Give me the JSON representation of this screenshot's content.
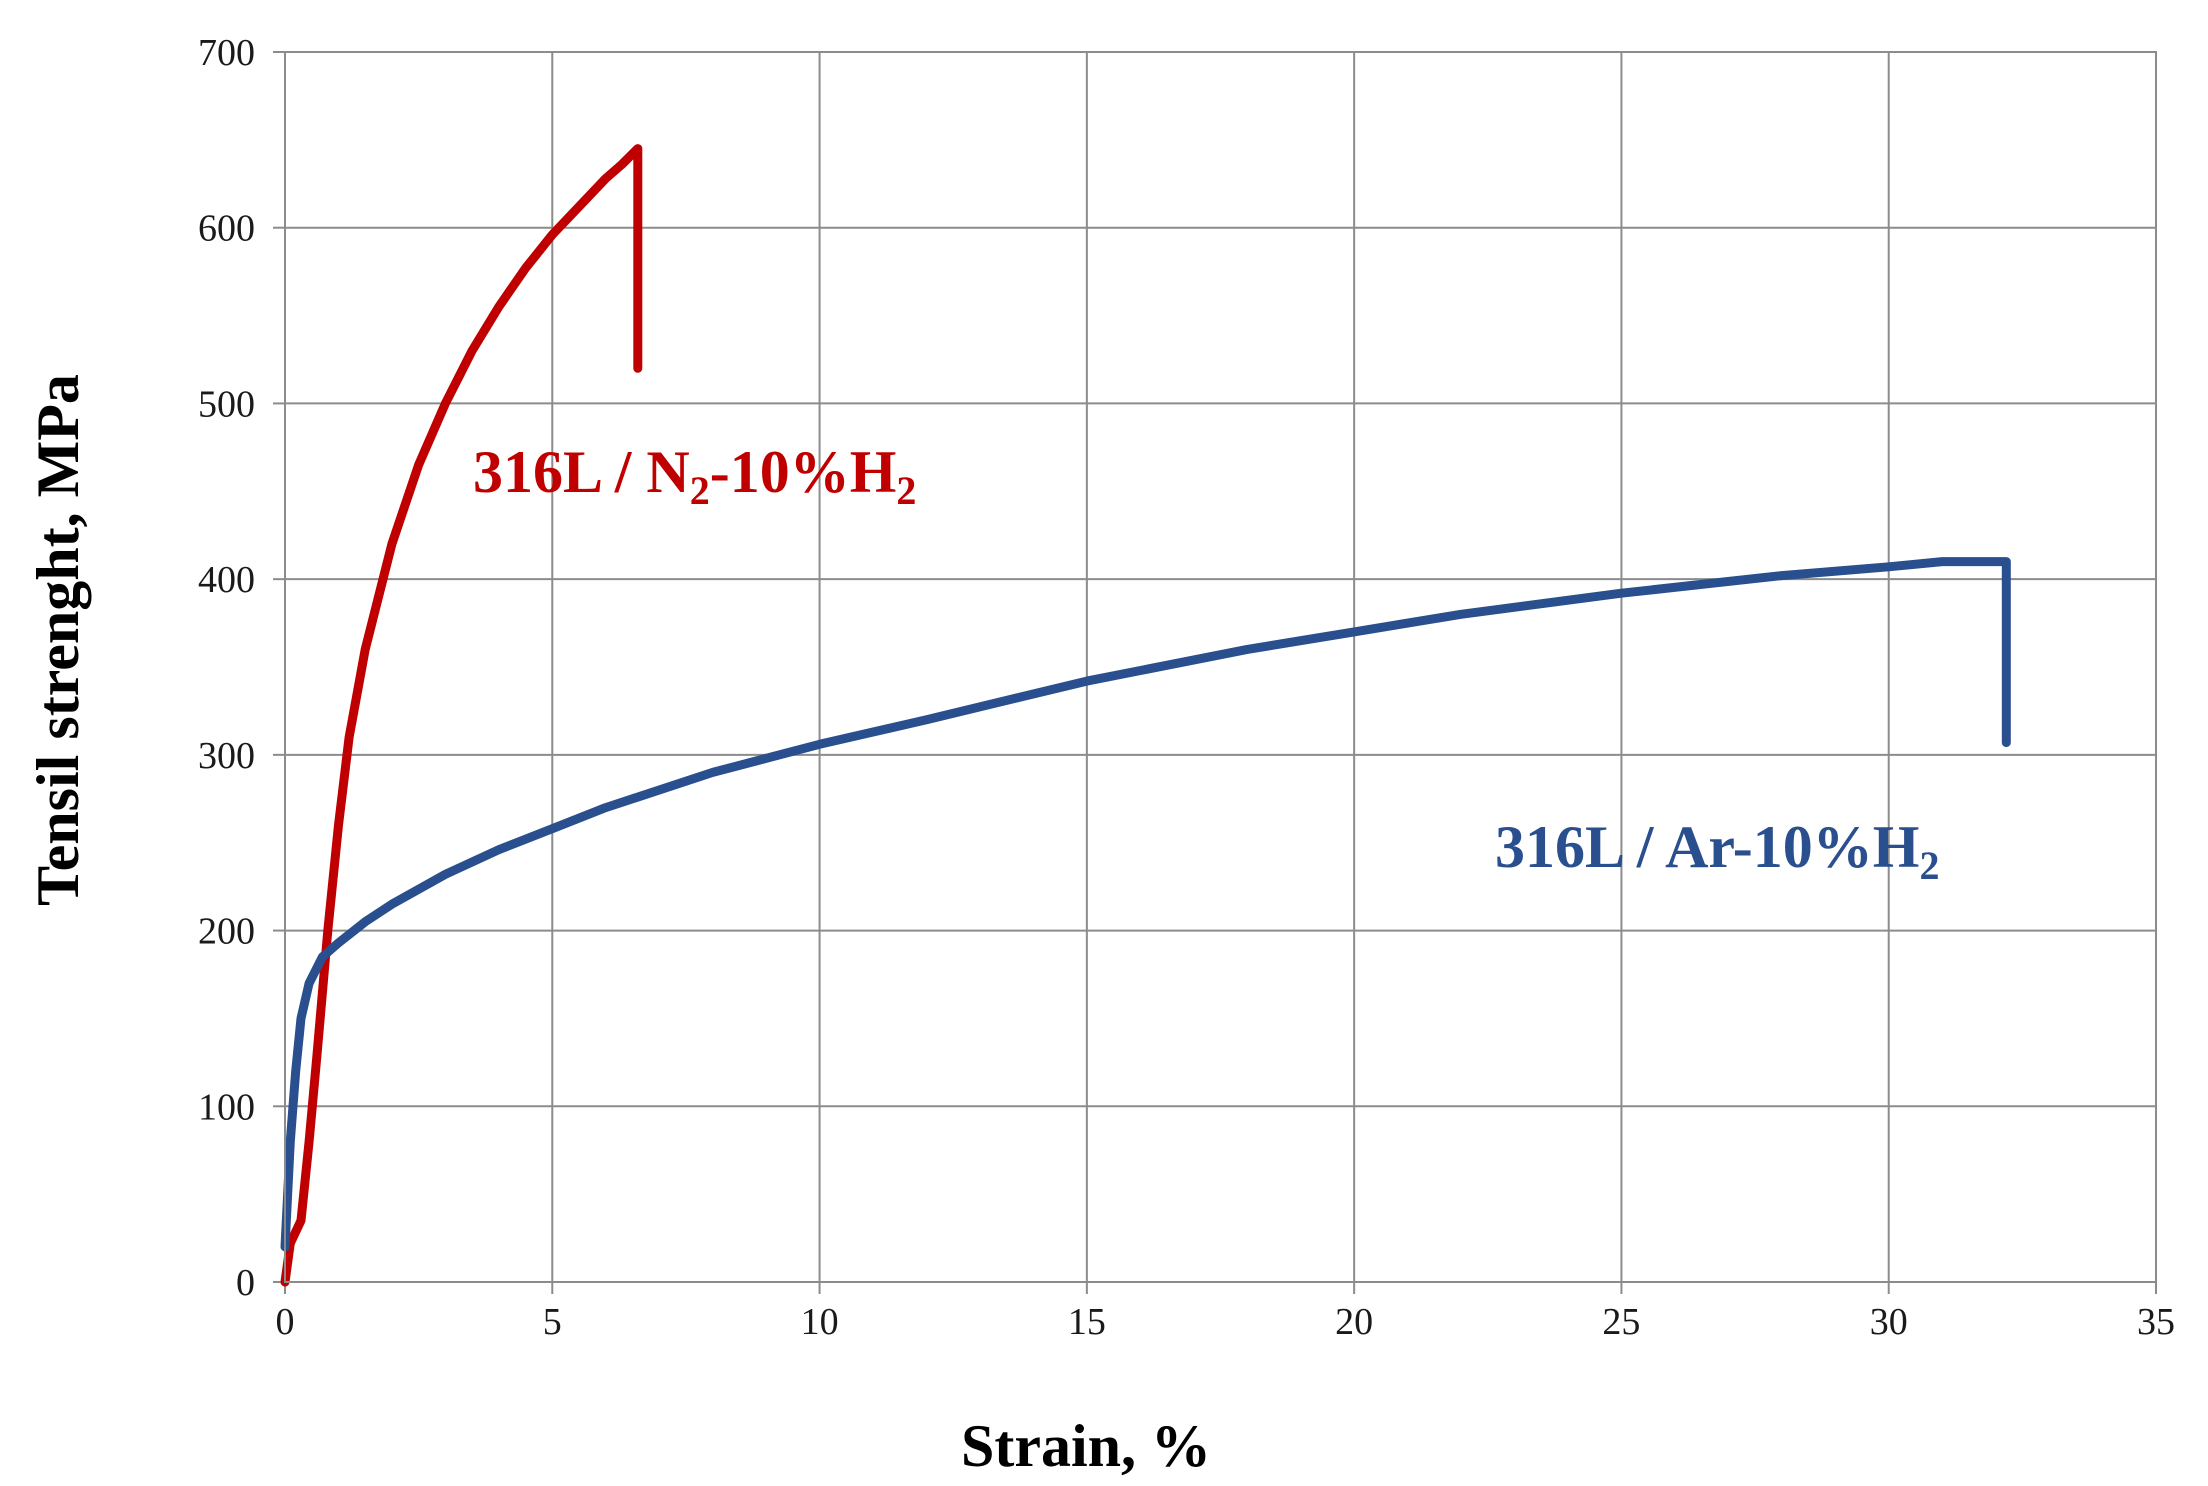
{
  "chart_data": {
    "type": "line",
    "xlabel": "Strain, %",
    "ylabel": "Tensil strenght, MPa",
    "xlim": [
      0,
      35
    ],
    "ylim": [
      0,
      700
    ],
    "xticks": [
      0,
      5,
      10,
      15,
      20,
      25,
      30,
      35
    ],
    "yticks": [
      0,
      100,
      200,
      300,
      400,
      500,
      600,
      700
    ],
    "grid": true,
    "legend": "none",
    "series": [
      {
        "label_main": "316L / N",
        "label_sub1": "2",
        "label_mid": "-10%H",
        "label_sub2": "2",
        "color": "#c00000",
        "x": [
          0,
          0.1,
          0.3,
          0.45,
          0.6,
          0.8,
          1.0,
          1.2,
          1.5,
          2.0,
          2.5,
          3.0,
          3.5,
          4.0,
          4.5,
          5.0,
          5.5,
          6.0,
          6.3,
          6.6,
          6.6
        ],
        "y": [
          0,
          22,
          35,
          80,
          130,
          200,
          260,
          310,
          360,
          420,
          465,
          500,
          530,
          555,
          577,
          596,
          612,
          628,
          636,
          645,
          520
        ]
      },
      {
        "label_main": "316L / Ar-10%H",
        "label_sub1": "",
        "label_mid": "",
        "label_sub2": "2",
        "color": "#2a4f8e",
        "x": [
          0,
          0.1,
          0.2,
          0.3,
          0.45,
          0.7,
          1.0,
          1.5,
          2,
          3,
          4,
          5,
          6,
          8,
          10,
          12,
          15,
          18,
          20,
          22,
          25,
          28,
          30,
          31,
          32.2,
          32.2
        ],
        "y": [
          20,
          80,
          120,
          150,
          170,
          185,
          193,
          205,
          215,
          232,
          246,
          258,
          270,
          290,
          306,
          320,
          342,
          360,
          370,
          380,
          392,
          402,
          407,
          410,
          410,
          307
        ]
      }
    ]
  }
}
